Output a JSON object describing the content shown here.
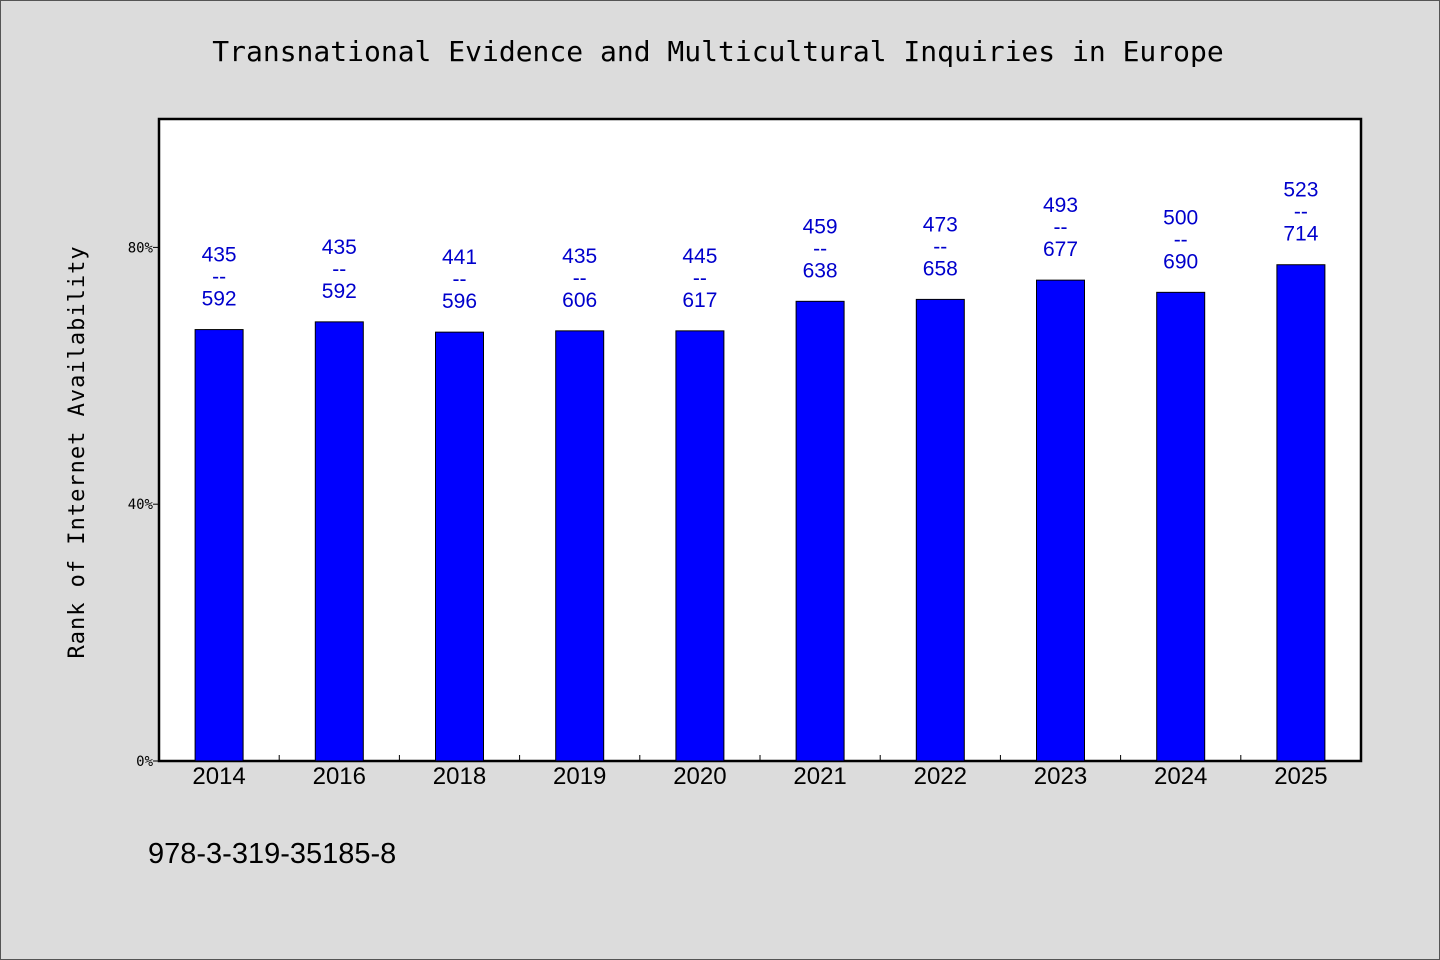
{
  "colors": {
    "background": "#dcdcdc",
    "plot": "#ffffff",
    "bar": "#0000ff",
    "label": "#0000cc"
  },
  "footer": {
    "code": "978-3-319-35185-8"
  },
  "chart_data": {
    "type": "bar",
    "title": "Transnational Evidence and Multicultural Inquiries in Europe",
    "xlabel": "",
    "ylabel": "Rank of Internet Availability",
    "ylim": [
      0,
      100
    ],
    "yticks": [
      0,
      40,
      80
    ],
    "ytick_labels": [
      "0%",
      "40%",
      "80%"
    ],
    "grid": false,
    "categories": [
      "2014",
      "2016",
      "2018",
      "2019",
      "2020",
      "2021",
      "2022",
      "2023",
      "2024",
      "2025"
    ],
    "values": [
      67.2,
      68.4,
      66.8,
      67.0,
      67.0,
      71.6,
      71.9,
      74.9,
      73.0,
      77.3
    ],
    "data_labels": [
      [
        "435",
        "--",
        "592"
      ],
      [
        "435",
        "--",
        "592"
      ],
      [
        "441",
        "--",
        "596"
      ],
      [
        "435",
        "--",
        "606"
      ],
      [
        "445",
        "--",
        "617"
      ],
      [
        "459",
        "--",
        "638"
      ],
      [
        "473",
        "--",
        "658"
      ],
      [
        "493",
        "--",
        "677"
      ],
      [
        "500",
        "--",
        "690"
      ],
      [
        "523",
        "--",
        "714"
      ]
    ]
  }
}
